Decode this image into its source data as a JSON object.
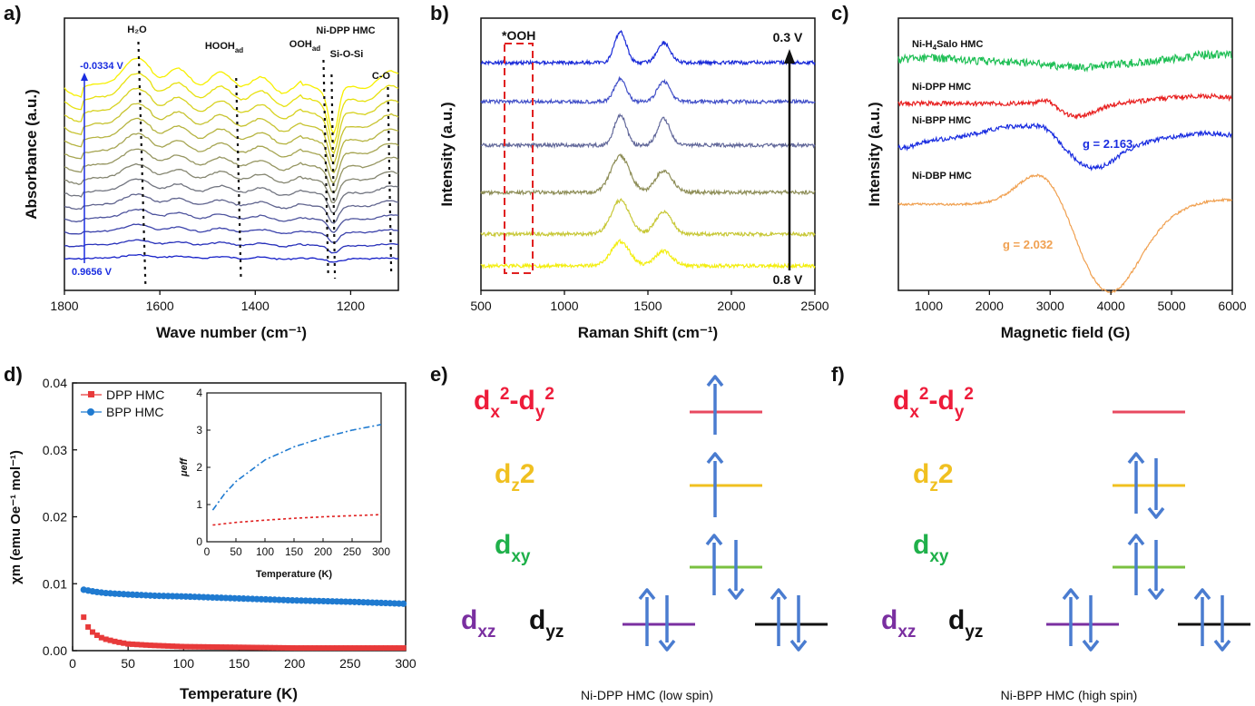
{
  "panels": [
    "a)",
    "b)",
    "c)",
    "d)",
    "e)",
    "f)"
  ],
  "colors": {
    "yellow": "#f7f000",
    "olive": "#8e8e3c",
    "navy": "#1620c8",
    "blue": "#1a2de0",
    "red": "#e83a3a",
    "green": "#1fbf55",
    "orange": "#f0a050",
    "purple": "#7a2fa0",
    "gold": "#f0c020",
    "lgreen": "#1fb04a",
    "arrow": "#4a7cd0",
    "mag": "#ee1c3a",
    "black": "#111111"
  },
  "chart_data": [
    {
      "type": "line",
      "id": "a",
      "title": "Ni-DPP HMC",
      "xlabel": "Wave number (cm⁻¹)",
      "ylabel": "Absorbance (a.u.)",
      "xlim": [
        1800,
        1100
      ],
      "xticks": [
        1800,
        1600,
        1400,
        1200
      ],
      "potential_top": "-0.0334 V",
      "potential_bottom": "0.9656 V",
      "n_series": 14,
      "peaks": [
        {
          "label": "H₂O",
          "x": 1645
        },
        {
          "label": "HOOH",
          "sub": "ad",
          "x": 1440
        },
        {
          "label": "OOH",
          "sub": "ad",
          "x": 1257
        },
        {
          "label": "Si-O-Si",
          "x": 1232
        },
        {
          "label": "C-O",
          "x": 1117
        }
      ]
    },
    {
      "type": "line",
      "id": "b",
      "xlabel": "Raman Shift (cm⁻¹)",
      "ylabel": "Intensity (a.u.)",
      "xlim": [
        500,
        2500
      ],
      "xticks": [
        500,
        1000,
        1500,
        2000,
        2500
      ],
      "annotation": "*OOH",
      "top_label": "0.3 V",
      "bottom_label": "0.8 V",
      "peaks": [
        1335,
        1595
      ],
      "n_series": 6
    },
    {
      "type": "line",
      "id": "c",
      "xlabel": "Magnetic field (G)",
      "ylabel": "Intensity (a.u.)",
      "xlim": [
        500,
        6000
      ],
      "xticks": [
        1000,
        2000,
        3000,
        4000,
        5000,
        6000
      ],
      "series": [
        {
          "name": "Ni-H₄Salo HMC",
          "name_main": "Ni-H",
          "name_sub": "4",
          "name_rest": "Salo HMC",
          "color": "#1fbf55"
        },
        {
          "name": "Ni-DPP HMC",
          "color": "#e82020"
        },
        {
          "name": "Ni-BPP HMC",
          "color": "#1a2de0",
          "g": "g = 2.163"
        },
        {
          "name": "Ni-DBP HMC",
          "color": "#f0a050",
          "g": "g = 2.032"
        }
      ]
    },
    {
      "type": "scatter",
      "id": "d",
      "xlabel": "Temperature (K)",
      "ylabel": "χm (emu Oe⁻¹ mol⁻¹)",
      "xlim": [
        0,
        300
      ],
      "ylim": [
        0,
        0.04
      ],
      "xticks": [
        0,
        50,
        100,
        150,
        200,
        250,
        300
      ],
      "yticks": [
        "0.00",
        "0.01",
        "0.02",
        "0.03",
        "0.04"
      ],
      "series": [
        {
          "name": "DPP HMC",
          "color": "#e83a3a",
          "marker": "square",
          "points": [
            [
              10,
              0.005
            ],
            [
              12,
              0.0042
            ],
            [
              15,
              0.0032
            ],
            [
              20,
              0.0025
            ],
            [
              25,
              0.002
            ],
            [
              30,
              0.0017
            ],
            [
              40,
              0.0013
            ],
            [
              50,
              0.001
            ],
            [
              70,
              0.0008
            ],
            [
              100,
              0.0006
            ],
            [
              150,
              0.0005
            ],
            [
              200,
              0.0004
            ],
            [
              250,
              0.0004
            ],
            [
              300,
              0.0004
            ]
          ]
        },
        {
          "name": "BPP HMC",
          "color": "#1f7ad0",
          "marker": "circle",
          "points": [
            [
              10,
              0.0091
            ],
            [
              20,
              0.0088
            ],
            [
              30,
              0.0086
            ],
            [
              50,
              0.0084
            ],
            [
              75,
              0.0082
            ],
            [
              100,
              0.0081
            ],
            [
              150,
              0.0078
            ],
            [
              200,
              0.0075
            ],
            [
              250,
              0.0073
            ],
            [
              300,
              0.007
            ]
          ]
        }
      ],
      "inset": {
        "xlabel": "Temperature (K)",
        "ylabel": "μeff",
        "xlim": [
          0,
          300
        ],
        "ylim": [
          0,
          4
        ],
        "xticks": [
          0,
          50,
          100,
          150,
          200,
          250,
          300
        ],
        "yticks": [
          0,
          1,
          2,
          3,
          4
        ],
        "series": [
          {
            "name": "BPP HMC",
            "color": "#1f7ad0",
            "points": [
              [
                10,
                0.85
              ],
              [
                30,
                1.28
              ],
              [
                50,
                1.62
              ],
              [
                100,
                2.2
              ],
              [
                150,
                2.55
              ],
              [
                200,
                2.8
              ],
              [
                250,
                3.0
              ],
              [
                300,
                3.15
              ]
            ]
          },
          {
            "name": "DPP HMC",
            "color": "#e02020",
            "points": [
              [
                10,
                0.45
              ],
              [
                50,
                0.52
              ],
              [
                100,
                0.58
              ],
              [
                150,
                0.63
              ],
              [
                200,
                0.67
              ],
              [
                250,
                0.7
              ],
              [
                300,
                0.73
              ]
            ]
          }
        ]
      }
    }
  ],
  "diagram_e": {
    "caption": "Ni-DPP HMC (low spin)",
    "orbitals": {
      "dx2y2": "d",
      "dx2y2_sub1": "x",
      "dx2y2_sup1": "2",
      "dx2y2_sub2": "-d",
      "dx2y2_sub3": "y",
      "dz2": "d",
      "dz2_sub": "z",
      "dz2_sup": "2",
      "dxy": "d",
      "dxy_sub": "xy",
      "dxz": "d",
      "dxz_sub": "xz",
      "dyz": "d",
      "dyz_sub": "yz"
    }
  },
  "diagram_f": {
    "caption": "Ni-BPP HMC (high spin)"
  }
}
